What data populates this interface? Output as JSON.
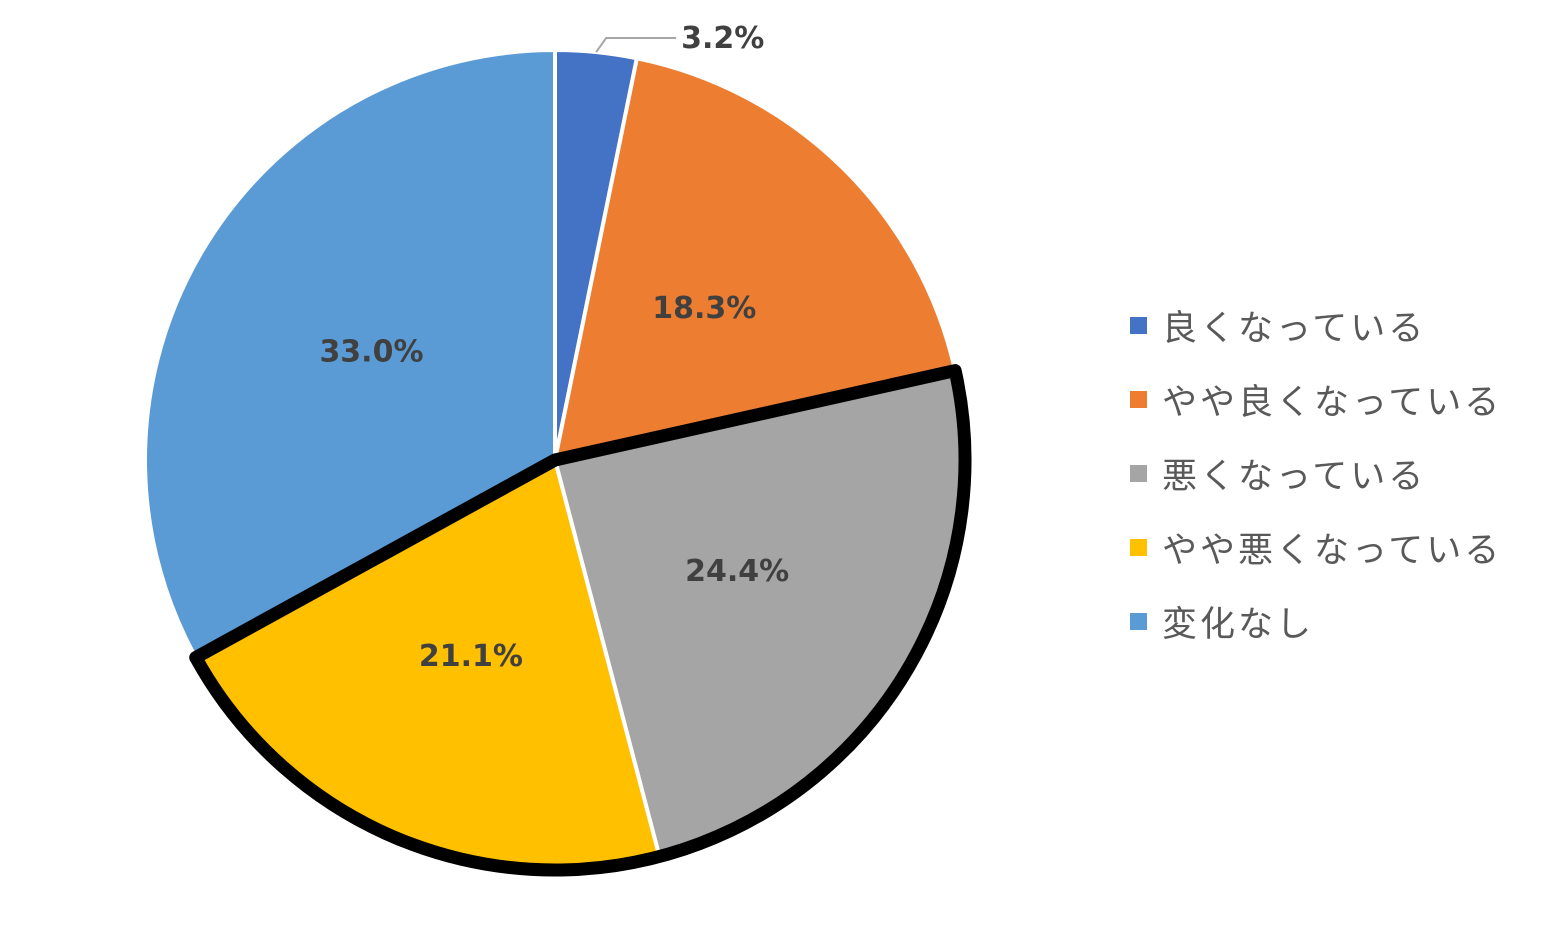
{
  "chart_data": {
    "type": "pie",
    "categories": [
      "良くなっている",
      "やや良くなっている",
      "悪くなっている",
      "やや悪くなっている",
      "変化なし"
    ],
    "values": [
      3.2,
      18.3,
      24.4,
      21.1,
      33.0
    ],
    "data_labels": [
      "3.2%",
      "18.3%",
      "24.4%",
      "21.1%",
      "33.0%"
    ],
    "colors": [
      "#4472C4",
      "#ED7D31",
      "#A5A5A5",
      "#FFC000",
      "#5B9BD5"
    ],
    "unit": "%",
    "start": "12 o'clock, clockwise",
    "highlight": {
      "slices": [
        "悪くなっている",
        "やや悪くなっている"
      ],
      "outline_color": "#000000"
    },
    "legend": {
      "position": "right",
      "entries": [
        "良くなっている",
        "やや良くなっている",
        "悪くなっている",
        "やや悪くなっている",
        "変化なし"
      ]
    }
  }
}
